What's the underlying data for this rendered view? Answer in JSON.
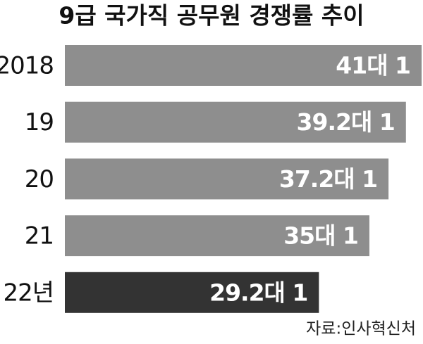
{
  "chart_data": {
    "type": "bar",
    "orientation": "horizontal",
    "title": "9급 국가직 공무원 경쟁률 추이",
    "categories": [
      "2018",
      "19",
      "20",
      "21",
      "22년"
    ],
    "values": [
      41,
      39.2,
      37.2,
      35,
      29.2
    ],
    "value_labels": [
      "41대 1",
      "39.2대 1",
      "37.2대 1",
      "35대 1",
      "29.2대 1"
    ],
    "colors": [
      "#8e8e8e",
      "#8e8e8e",
      "#8e8e8e",
      "#8e8e8e",
      "#333333"
    ],
    "source": "자료:인사혁신처"
  }
}
